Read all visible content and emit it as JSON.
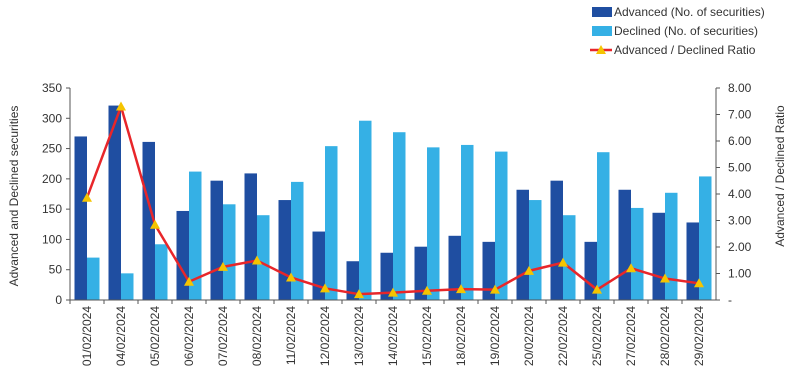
{
  "chart_data": {
    "type": "bar+line",
    "categories": [
      "01/02/2024",
      "04/02/2024",
      "05/02/2024",
      "06/02/2024",
      "07/02/2024",
      "08/02/2024",
      "11/02/2024",
      "12/02/2024",
      "13/02/2024",
      "14/02/2024",
      "15/02/2024",
      "18/02/2024",
      "19/02/2024",
      "20/02/2024",
      "22/02/2024",
      "25/02/2024",
      "27/02/2024",
      "28/02/2024",
      "29/02/2024"
    ],
    "series": [
      {
        "name": "Advanced (No. of securities)",
        "type": "bar",
        "axis": "left",
        "color": "#1f4ea1",
        "values": [
          270,
          321,
          261,
          147,
          197,
          209,
          165,
          113,
          64,
          78,
          88,
          106,
          96,
          182,
          197,
          96,
          182,
          144,
          128
        ]
      },
      {
        "name": "Declined (No. of securities)",
        "type": "bar",
        "axis": "left",
        "color": "#35b0e5",
        "values": [
          70,
          44,
          92,
          212,
          158,
          140,
          195,
          254,
          296,
          277,
          252,
          256,
          245,
          165,
          140,
          244,
          152,
          177,
          204
        ]
      },
      {
        "name": "Advanced / Declined Ratio",
        "type": "line",
        "axis": "right",
        "color": "#e8262a",
        "marker_color": "#f5c400",
        "values": [
          3.86,
          7.3,
          2.84,
          0.69,
          1.25,
          1.49,
          0.85,
          0.44,
          0.22,
          0.28,
          0.35,
          0.41,
          0.39,
          1.1,
          1.41,
          0.39,
          1.2,
          0.81,
          0.63
        ]
      }
    ],
    "ylabel": "Advanced and Declined securities",
    "y2label": "Advanced / Declined  Ratio",
    "ylim": [
      0,
      350
    ],
    "y2lim": [
      0,
      8
    ],
    "yticks": [
      "0",
      "50",
      "100",
      "150",
      "200",
      "250",
      "300",
      "350"
    ],
    "y2ticks": [
      "-",
      "1.00",
      "2.00",
      "3.00",
      "4.00",
      "5.00",
      "6.00",
      "7.00",
      "8.00"
    ],
    "legend_position": "top-right",
    "grid": false
  }
}
